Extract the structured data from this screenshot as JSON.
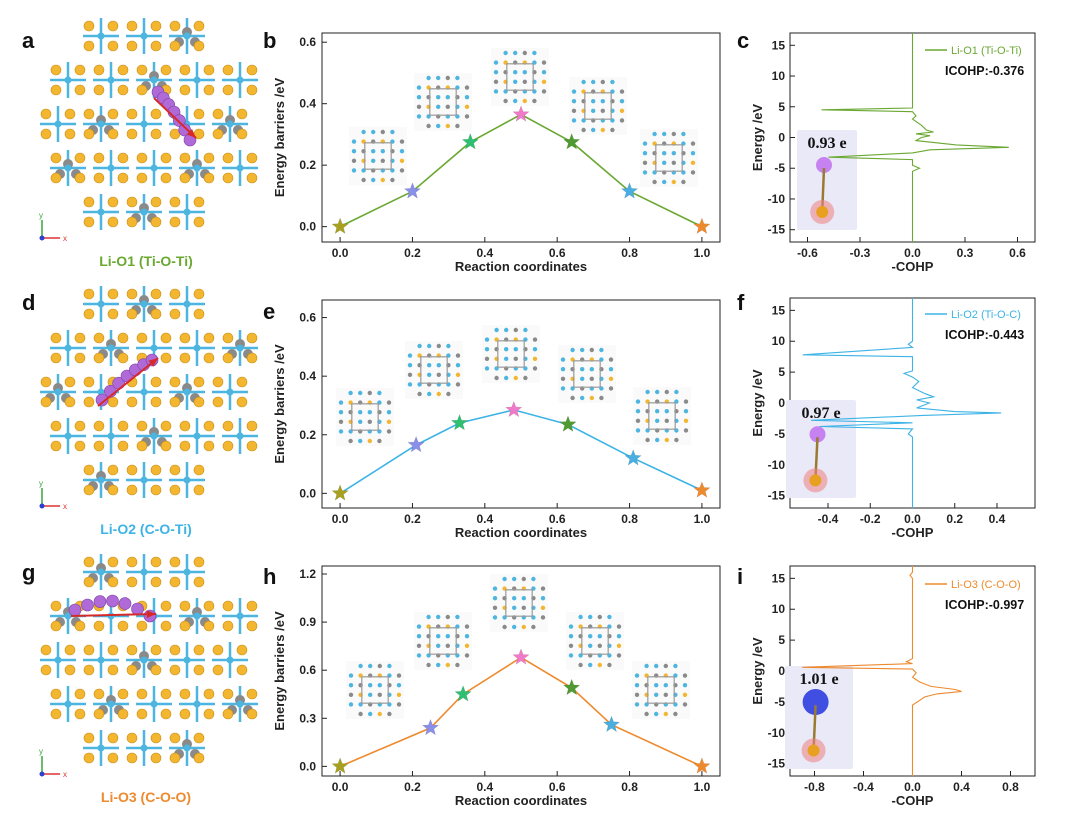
{
  "colors": {
    "green": "#6aa832",
    "blue": "#3db3e6",
    "orange": "#ee8a2e",
    "ti": "#4cb5e0",
    "o": "#f2b630",
    "c": "#8a8a8a",
    "li": "#b06ad8",
    "arrow": "#d62a2a"
  },
  "structures": [
    {
      "panel": "a",
      "name": "Li-O1 (Ti-O-Ti)",
      "color": "#6aa832"
    },
    {
      "panel": "d",
      "name": "Li-O2 (C-O-Ti)",
      "color": "#3db3e6"
    },
    {
      "panel": "g",
      "name": "Li-O3 (C-O-O)",
      "color": "#ee8a2e"
    }
  ],
  "axis_glyphs": {
    "y": "y",
    "x": "x"
  },
  "chart_data": [
    {
      "panel": "b",
      "type": "line",
      "title": "",
      "xlabel": "Reaction coordinates",
      "ylabel": "Energy barriers /eV",
      "x": [
        0.0,
        0.2,
        0.36,
        0.5,
        0.64,
        0.8,
        1.0
      ],
      "y": [
        0.0,
        0.115,
        0.275,
        0.365,
        0.275,
        0.115,
        0.0
      ],
      "xlim": [
        -0.05,
        1.05
      ],
      "ylim": [
        -0.05,
        0.63
      ],
      "xticks": [
        "0.0",
        "0.2",
        "0.4",
        "0.6",
        "0.8",
        "1.0"
      ],
      "yticks": [
        "0.0",
        "0.2",
        "0.4",
        "0.6"
      ],
      "line_color": "#6aa832",
      "marker_colors": [
        "#a8a020",
        "#8a8fe8",
        "#2fbf72",
        "#f07ac8",
        "#4f9a32",
        "#4aaee0",
        "#ee8a2e"
      ]
    },
    {
      "panel": "c",
      "type": "line",
      "xlabel": "-COHP",
      "ylabel": "Energy /eV",
      "legend": "Li-O1 (Ti-O-Ti)",
      "icohp": "ICOHP:-0.376",
      "charge": "0.93 e",
      "xlim": [
        -0.7,
        0.7
      ],
      "ylim": [
        -17,
        17
      ],
      "xticks": [
        "-0.6",
        "-0.3",
        "0.0",
        "0.3",
        "0.6"
      ],
      "yticks": [
        "15",
        "10",
        "5",
        "0",
        "-5",
        "-10",
        "-15"
      ],
      "line_color": "#6aa832",
      "points": [
        [
          0,
          17
        ],
        [
          0,
          5
        ],
        [
          0,
          4.8
        ],
        [
          -0.52,
          4.5
        ],
        [
          0,
          4.2
        ],
        [
          0.02,
          3.5
        ],
        [
          0,
          3
        ],
        [
          0.05,
          2
        ],
        [
          0.08,
          1.2
        ],
        [
          0.12,
          0.9
        ],
        [
          0.02,
          0.6
        ],
        [
          0.1,
          0.3
        ],
        [
          0.05,
          0
        ],
        [
          0.02,
          -0.5
        ],
        [
          0.25,
          -1.2
        ],
        [
          0.55,
          -1.6
        ],
        [
          0.1,
          -2
        ],
        [
          0,
          -2.5
        ],
        [
          -0.48,
          -3.2
        ],
        [
          0,
          -3.6
        ],
        [
          0,
          -4.5
        ],
        [
          0.04,
          -5
        ],
        [
          0,
          -5.5
        ],
        [
          0,
          -17
        ]
      ]
    },
    {
      "panel": "e",
      "type": "line",
      "xlabel": "Reaction coordinates",
      "ylabel": "Energy barriers /eV",
      "x": [
        0.0,
        0.21,
        0.33,
        0.48,
        0.63,
        0.81,
        1.0
      ],
      "y": [
        0.0,
        0.165,
        0.24,
        0.285,
        0.235,
        0.12,
        0.01
      ],
      "xlim": [
        -0.05,
        1.05
      ],
      "ylim": [
        -0.05,
        0.66
      ],
      "xticks": [
        "0.0",
        "0.2",
        "0.4",
        "0.6",
        "0.8",
        "1.0"
      ],
      "yticks": [
        "0.0",
        "0.2",
        "0.4",
        "0.6"
      ],
      "line_color": "#3db3e6",
      "marker_colors": [
        "#a8a020",
        "#8a8fe8",
        "#2fbf72",
        "#f07ac8",
        "#4f9a32",
        "#4aaee0",
        "#ee8a2e"
      ]
    },
    {
      "panel": "f",
      "type": "line",
      "xlabel": "-COHP",
      "ylabel": "Energy /eV",
      "legend": "Li-O2 (Ti-O-C)",
      "icohp": "ICOHP:-0.443",
      "charge": "0.97 e",
      "xlim": [
        -0.58,
        0.58
      ],
      "ylim": [
        -17,
        17
      ],
      "xticks": [
        "-0.4",
        "-0.2",
        "0.0",
        "0.2",
        "0.4"
      ],
      "yticks": [
        "15",
        "10",
        "5",
        "0",
        "-5",
        "-10",
        "-15"
      ],
      "line_color": "#3db3e6",
      "points": [
        [
          0,
          17
        ],
        [
          0,
          10
        ],
        [
          -0.02,
          9.5
        ],
        [
          0,
          9
        ],
        [
          -0.52,
          7.8
        ],
        [
          0,
          7.5
        ],
        [
          0,
          5.2
        ],
        [
          -0.04,
          4.8
        ],
        [
          0,
          4.2
        ],
        [
          0.03,
          3.5
        ],
        [
          0,
          2.5
        ],
        [
          0.06,
          1.5
        ],
        [
          0.1,
          1
        ],
        [
          0.02,
          0.5
        ],
        [
          0.08,
          0
        ],
        [
          0.02,
          -0.8
        ],
        [
          0.2,
          -1.4
        ],
        [
          0.42,
          -1.6
        ],
        [
          0.05,
          -2
        ],
        [
          -0.48,
          -2.8
        ],
        [
          0,
          -3.2
        ],
        [
          -0.44,
          -3.8
        ],
        [
          0,
          -4.2
        ],
        [
          -0.02,
          -5
        ],
        [
          0,
          -5.5
        ],
        [
          0,
          -17
        ]
      ]
    },
    {
      "panel": "h",
      "type": "line",
      "xlabel": "Reaction coordinates",
      "ylabel": "Energy barriers /eV",
      "x": [
        0.0,
        0.25,
        0.34,
        0.5,
        0.64,
        0.75,
        1.0
      ],
      "y": [
        0.0,
        0.24,
        0.45,
        0.68,
        0.49,
        0.26,
        0.0
      ],
      "xlim": [
        -0.05,
        1.05
      ],
      "ylim": [
        -0.06,
        1.25
      ],
      "xticks": [
        "0.0",
        "0.2",
        "0.4",
        "0.6",
        "0.8",
        "1.0"
      ],
      "yticks": [
        "0.0",
        "0.3",
        "0.6",
        "0.9",
        "1.2"
      ],
      "line_color": "#ee8a2e",
      "marker_colors": [
        "#a8a020",
        "#8a8fe8",
        "#2fbf72",
        "#f07ac8",
        "#4f9a32",
        "#4aaee0",
        "#ee8a2e"
      ]
    },
    {
      "panel": "i",
      "type": "line",
      "xlabel": "-COHP",
      "ylabel": "Energy /eV",
      "legend": "Li-O3 (C-O-O)",
      "icohp": "ICOHP:-0.997",
      "charge": "1.01 e",
      "xlim": [
        -1.0,
        1.0
      ],
      "ylim": [
        -17,
        17
      ],
      "xticks": [
        "-0.8",
        "-0.4",
        "0.0",
        "0.4",
        "0.8"
      ],
      "yticks": [
        "15",
        "10",
        "5",
        "0",
        "-5",
        "-10",
        "-15"
      ],
      "line_color": "#ee8a2e",
      "points": [
        [
          0,
          17
        ],
        [
          0,
          16
        ],
        [
          -0.02,
          15.5
        ],
        [
          0,
          15
        ],
        [
          0,
          2
        ],
        [
          -0.05,
          1.5
        ],
        [
          0,
          1.2
        ],
        [
          -0.9,
          0.6
        ],
        [
          0,
          0.3
        ],
        [
          0.03,
          -0.3
        ],
        [
          0,
          -1
        ],
        [
          0.06,
          -1.8
        ],
        [
          0.15,
          -2.5
        ],
        [
          0.35,
          -3
        ],
        [
          0.4,
          -3.3
        ],
        [
          0.2,
          -3.7
        ],
        [
          0.1,
          -4.2
        ],
        [
          0.04,
          -5
        ],
        [
          0,
          -5.5
        ],
        [
          0,
          -17
        ]
      ]
    }
  ]
}
